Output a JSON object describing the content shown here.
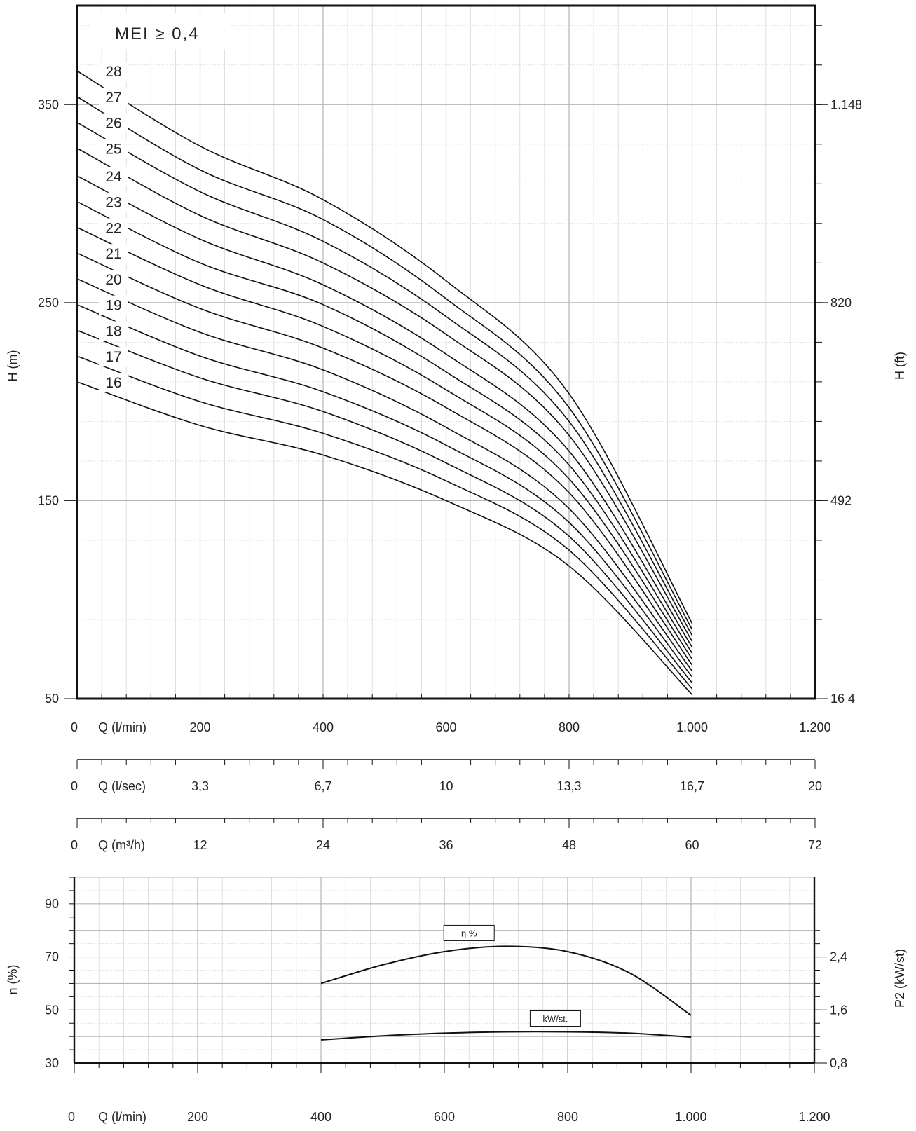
{
  "chart_data": [
    {
      "type": "line",
      "title": "",
      "annotation": "MEI ≥ 0,4",
      "ylabel": "H (m)",
      "y2label": "H (ft)",
      "xlim": [
        0,
        1200
      ],
      "ylim": [
        50,
        400
      ],
      "yticks": [
        "50",
        "150",
        "250",
        "350"
      ],
      "y2ticks": [
        "16 4",
        "492",
        "820",
        "1.148"
      ],
      "x_axes": [
        {
          "label": "Q (l/min)",
          "zero": "0",
          "ticks": [
            "200",
            "400",
            "600",
            "800",
            "1.000",
            "1.200"
          ]
        },
        {
          "label": "Q (l/sec)",
          "zero": "0",
          "ticks": [
            "3,3",
            "6,7",
            "10",
            "13,3",
            "16,7",
            "20"
          ]
        },
        {
          "label": "Q (m³/h)",
          "zero": "0",
          "ticks": [
            "12",
            "24",
            "36",
            "48",
            "60",
            "72"
          ]
        }
      ],
      "x": [
        0,
        200,
        400,
        600,
        800,
        1000
      ],
      "series": [
        {
          "name": "16",
          "values": [
            210,
            188,
            173,
            150,
            117,
            52
          ]
        },
        {
          "name": "17",
          "values": [
            223,
            200,
            184,
            160,
            125,
            55
          ]
        },
        {
          "name": "18",
          "values": [
            236,
            212,
            195,
            169,
            132,
            58
          ]
        },
        {
          "name": "19",
          "values": [
            249,
            223,
            205,
            178,
            139,
            61
          ]
        },
        {
          "name": "20",
          "values": [
            262,
            235,
            216,
            187,
            146,
            64
          ]
        },
        {
          "name": "21",
          "values": [
            275,
            247,
            227,
            197,
            154,
            67
          ]
        },
        {
          "name": "22",
          "values": [
            288,
            259,
            238,
            206,
            161,
            70
          ]
        },
        {
          "name": "23",
          "values": [
            301,
            270,
            249,
            215,
            168,
            73
          ]
        },
        {
          "name": "24",
          "values": [
            314,
            282,
            259,
            224,
            175,
            76
          ]
        },
        {
          "name": "25",
          "values": [
            328,
            294,
            270,
            234,
            183,
            79
          ]
        },
        {
          "name": "26",
          "values": [
            341,
            306,
            281,
            243,
            190,
            82
          ]
        },
        {
          "name": "27",
          "values": [
            354,
            317,
            292,
            252,
            197,
            85
          ]
        },
        {
          "name": "28",
          "values": [
            367,
            329,
            302,
            261,
            204,
            88
          ]
        }
      ]
    },
    {
      "type": "line",
      "title": "",
      "ylabel": "n (%)",
      "y2label": "P2  (kW/st)",
      "xlim": [
        0,
        1200
      ],
      "ylim": [
        30,
        100
      ],
      "yticks": [
        "30",
        "50",
        "70",
        "90"
      ],
      "y2ticks": [
        "0,8",
        "1,6",
        "2,4"
      ],
      "xaxis": {
        "label": "Q (l/min)",
        "zero": "0",
        "ticks": [
          "200",
          "400",
          "600",
          "800",
          "1.000",
          "1.200"
        ]
      },
      "x": [
        400,
        500,
        600,
        700,
        800,
        900,
        1000
      ],
      "series": [
        {
          "name": "η %",
          "axis": "left",
          "values": [
            60,
            67,
            72,
            74,
            72,
            64,
            48
          ]
        },
        {
          "name": "kW/st.",
          "axis": "right",
          "values": [
            1.15,
            1.21,
            1.25,
            1.27,
            1.27,
            1.25,
            1.19
          ]
        }
      ]
    }
  ]
}
